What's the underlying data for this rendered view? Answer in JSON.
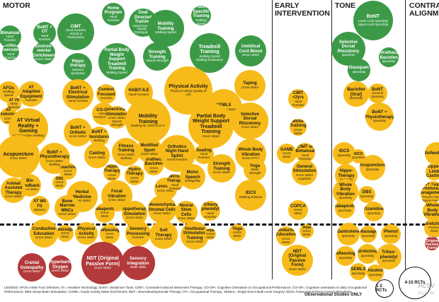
{
  "headers": [
    "MOTOR",
    "EARLY\nINTERVENTION",
    "TONE",
    "CONTRACTURE\nALIGNMENT"
  ],
  "legend": "LEGEND: AFOs=Ankle Foot Orthoses; AT= Assistive Technology; BoNT= Botulinum Toxin; CIMT= Constraint Induced Movement Therapy; CO-OP= Cognitive Orientation to Occupational Performance; CO-OP= Cognitive orientation to daily Occupational Performance; DBS=Deep Brain Stimulation; GAME= Goals Activity Motor Enrichment; NDT= Neurodevelopmental Therapy; OT= Occupational Therapy; SEMLS= Single Event Multi Level Surgery; tDCS=Transcranial Direct Current Stimulation",
  "size_legend": {
    "obs": "Observational Studies ONLY",
    "r1": "1-3 RCTs",
    "r2": "4-15 RCTs"
  },
  "watermark": {
    "line1": "Activ",
    "line2": "Go to Se"
  },
  "bubbles": [
    {
      "n": "Home Program",
      "s": "Hand Function",
      "c": "green"
    },
    {
      "n": "Goal Directed Training",
      "s": "Hand Function Activity & Participation",
      "c": "green"
    },
    {
      "n": "Task Specific Training",
      "s": "Walking Speed",
      "c": "green"
    },
    {
      "n": "Bimanual",
      "s": "Hand Function",
      "c": "green"
    },
    {
      "n": "BoNT + OT",
      "s": "Hand Function",
      "c": "green"
    },
    {
      "n": "CIMT",
      "s": "Hand Function Activity & Participation",
      "c": "green"
    },
    {
      "n": "Mobility Training",
      "s": "Walking Speed",
      "c": "green"
    },
    {
      "n": "Action Observation",
      "s": "Hand Function",
      "c": "green"
    },
    {
      "n": "Environ-mental Enrichment",
      "s": "Gross Motor",
      "c": "green"
    },
    {
      "n": "Hippo therapy",
      "s": "Balance Symmetry",
      "c": "green"
    },
    {
      "n": "Partial Body Weight Support Treadmill Training",
      "s": "Walking Speed",
      "c": "green"
    },
    {
      "n": "Strength Training",
      "s": "Muscle Strength",
      "c": "green"
    },
    {
      "n": "Treadmill Training",
      "s": "Walking Speed Walking Endurance",
      "c": "green"
    },
    {
      "n": "Umbilical Cord Blood",
      "s": "Gross Motor",
      "c": "green"
    },
    {
      "n": "AFOs",
      "s": "Walking Speed",
      "c": "yellow"
    },
    {
      "n": "AT Adaptive Equipment",
      "s": "Function",
      "c": "yellow"
    },
    {
      "n": "AT VR",
      "s": "Motor Function",
      "c": "yellow"
    },
    {
      "n": "BoNT + Electrical Stimulation",
      "s": "Hand Function",
      "c": "yellow"
    },
    {
      "n": "Context Focused",
      "s": "Function",
      "c": "yellow"
    },
    {
      "n": "HABIT-ILE",
      "s": "Hand Function",
      "c": "yellow"
    },
    {
      "n": "Physical Activity",
      "s": "Physical Activity Quality of Life",
      "c": "yellow"
    },
    {
      "n": "Taping",
      "s": "Gross Motor",
      "c": "yellow"
    },
    {
      "n": "AT Robotics",
      "s": "Gross Motor",
      "c": "yellow"
    },
    {
      "n": "CO-OP",
      "s": "Activity Performance",
      "c": "yellow"
    },
    {
      "n": "SEMLS",
      "s": "Gait Walking Speed",
      "c": "yellow"
    },
    {
      "n": "AT Virtual Reality + Gaming",
      "s": "Hand Function Walking",
      "c": "yellow"
    },
    {
      "n": "Electrical Stimulation",
      "s": "Gross Motor Muscle Strength",
      "c": "yellow"
    },
    {
      "n": "Mobility Training",
      "s": "Walking for GMFCS III-V",
      "c": "yellow"
    },
    {
      "n": "Partial Body Weight Support Treadmill Training",
      "s": "Gross Motor",
      "c": "yellow"
    },
    {
      "n": "Selective Dorsal Rhizotomy",
      "s": "Gross Motor",
      "c": "yellow"
    },
    {
      "n": "BoNT + Orthotic",
      "s": "Gross Motor",
      "c": "yellow"
    },
    {
      "n": "BoNT + Resistance",
      "s": "Walking",
      "c": "yellow"
    },
    {
      "n": "Acupuncture",
      "s": "Gross Motor",
      "c": "yellow"
    },
    {
      "n": "BoNT + Physiotherapy",
      "s": "Gross Motor Walking",
      "c": "yellow"
    },
    {
      "n": "Casting",
      "s": "Gross Motor",
      "c": "yellow"
    },
    {
      "n": "Fitness Training",
      "s": "Gross Motor Walking",
      "c": "yellow"
    },
    {
      "n": "Modified Sport",
      "s": "Gross Motor",
      "c": "yellow"
    },
    {
      "n": "Orthotics Night Hand Splint",
      "s": "Hand Function",
      "c": "yellow"
    },
    {
      "n": "Whole Body Vibration",
      "s": "Gross Motor",
      "c": "yellow"
    },
    {
      "n": "Seating",
      "s": "Hand Function",
      "c": "yellow"
    },
    {
      "n": "Coaching",
      "s": "Gross Motor",
      "c": "yellow"
    },
    {
      "n": "Hippo Therapy",
      "s": "Gross Motor",
      "c": "yellow"
    },
    {
      "n": "Hydro Therapy",
      "s": "Gross Motor",
      "c": "yellow"
    },
    {
      "n": "Intrathecal Baclofen",
      "s": "Gross Motor",
      "c": "yellow"
    },
    {
      "n": "Strength Training",
      "s": "Gross Motor",
      "c": "yellow"
    },
    {
      "n": "Yoga",
      "s": "Motor Strength",
      "c": "yellow"
    },
    {
      "n": "Bio Feedback",
      "s": "Gross Motor",
      "c": "yellow"
    },
    {
      "n": "DBS",
      "s": "Gross Motor",
      "c": "yellow"
    },
    {
      "n": "Levodopa",
      "s": "Gross Motor",
      "c": "yellow"
    },
    {
      "n": "Mirror Therapy",
      "s": "Hand Function",
      "c": "yellow"
    },
    {
      "n": "Motor Speech",
      "s": "Intelligibility",
      "c": "yellow"
    },
    {
      "n": "Animal Assisted Therapy",
      "s": "Gross Motor",
      "c": "yellow"
    },
    {
      "n": "Herbal Medicine",
      "s": "Gross Motor",
      "c": "yellow"
    },
    {
      "n": "Focal Vibration",
      "s": "Gross Motor",
      "c": "yellow"
    },
    {
      "n": "tDCS",
      "s": "Walking Balance",
      "c": "yellow"
    },
    {
      "n": "AT Wii Fit",
      "s": "Balance",
      "c": "yellow"
    },
    {
      "n": "Bone Marrow MNCs",
      "s": "Gross Motor",
      "c": "yellow"
    },
    {
      "n": "Gabapentin",
      "s": "Gross Motor",
      "c": "yellow"
    },
    {
      "n": "Hippotherapy Simulation",
      "s": "Gross Motor",
      "c": "yellow"
    },
    {
      "n": "Mesenchymal Stromal Cells",
      "s": "Gross Motor",
      "c": "yellow"
    },
    {
      "n": "Neural Stem Cells",
      "s": "Gross Motor",
      "c": "yellow"
    },
    {
      "n": "Trihexy phenidyl",
      "s": "Hand Function",
      "c": "yellow"
    },
    {
      "n": "Conductive Education",
      "s": "Gross Motor",
      "c": "yellow"
    },
    {
      "n": "Massage",
      "s": "Gross Motor",
      "c": "yellow"
    },
    {
      "n": "Physical Activity",
      "s": "Gross Motor",
      "c": "yellow"
    },
    {
      "n": "Reflexology",
      "s": "Gross Motor",
      "c": "yellow"
    },
    {
      "n": "Sensory Processing",
      "s": "Function",
      "c": "yellow"
    },
    {
      "n": "Suit Therapy",
      "s": "Gross Motor",
      "c": "yellow"
    },
    {
      "n": "Vestibular Stimulation Training",
      "s": "Gross Motor",
      "c": "yellow"
    },
    {
      "n": "Vojta",
      "s": "Gross Motor",
      "c": "yellow"
    },
    {
      "n": "Yoga",
      "s": "Gross Motor",
      "c": "yellow"
    },
    {
      "n": "Cranial Osteopathy",
      "s": "Gross Motor",
      "c": "red"
    },
    {
      "n": "Hyperbaric Oxygen",
      "s": "Gross Motor",
      "c": "red"
    },
    {
      "n": "NDT [Original Passive Form]",
      "s": "Gross Motor",
      "c": "red"
    },
    {
      "n": "Sensory Integration",
      "s": "Motor Skills",
      "c": "red"
    },
    {
      "n": "CIMT <2yrs",
      "s": "Hand Function",
      "c": "yellow"
    },
    {
      "n": "Motor Training",
      "s": "Gross Motor",
      "c": "yellow"
    },
    {
      "n": "GAME",
      "s": "Gross Motor",
      "c": "yellow"
    },
    {
      "n": "CIMT or Bimanual",
      "s": "Hand Function",
      "c": "yellow"
    },
    {
      "n": "General Stimulation",
      "s": "Gross Motor Cognition",
      "c": "yellow"
    },
    {
      "n": "COPCA",
      "s": "Gross Motor",
      "c": "yellow"
    },
    {
      "n": "Conductive Education",
      "s": "Gross Motor",
      "c": "yellow"
    },
    {
      "n": "Vojta",
      "s": "Gross Motor",
      "c": "yellow"
    },
    {
      "n": "NDT [Original Passive Form]",
      "s": "Gross Motor",
      "c": "yellow"
    },
    {
      "n": "BoNT",
      "s": "Lower Limb Spasticity Upper Limb Spasticity",
      "c": "green"
    },
    {
      "n": "Selective Dorsal Rhizotomy",
      "s": "Spasticity",
      "c": "green"
    },
    {
      "n": "Intrathecal Baclofen",
      "s": "Spasticity",
      "c": "green"
    },
    {
      "n": "Diazepam",
      "s": "Spasticity",
      "c": "green"
    },
    {
      "n": "Baclofen [Oral]",
      "s": "Spasticity",
      "c": "yellow"
    },
    {
      "n": "BoNT",
      "s": "Cervical Dystonia",
      "c": "yellow"
    },
    {
      "n": "BoNT + Physiotherapy",
      "s": "Spasticity",
      "c": "yellow"
    },
    {
      "n": "tDCS",
      "s": "Spasticity",
      "c": "yellow"
    },
    {
      "n": "tDCS",
      "s": "Spasticity",
      "c": "yellow"
    },
    {
      "n": "Hippo-Therapy",
      "s": "Spasticity",
      "c": "yellow"
    },
    {
      "n": "Acupuncture",
      "s": "Spasticity",
      "c": "yellow"
    },
    {
      "n": "Whole Body Vibration",
      "s": "Spasticity",
      "c": "yellow"
    },
    {
      "n": "DBS",
      "s": "Spasticity",
      "c": "yellow"
    },
    {
      "n": "Gabapentin",
      "s": "Spasticity",
      "c": "yellow"
    },
    {
      "n": "Tizanidine",
      "s": "Spasticity",
      "c": "yellow"
    },
    {
      "n": "Dantrolene",
      "s": "Spasticity",
      "c": "yellow"
    },
    {
      "n": "Massage",
      "s": "Spasticity",
      "c": "yellow"
    },
    {
      "n": "Phenol",
      "s": "Spasticity",
      "c": "yellow"
    },
    {
      "n": "Reflexology",
      "s": "Spasticity",
      "c": "yellow"
    },
    {
      "n": "Stretching",
      "s": "Spasticity",
      "c": "yellow"
    },
    {
      "n": "Trihex-phenidyl",
      "s": "Spasticity",
      "c": "yellow"
    },
    {
      "n": "SEMLS",
      "s": "Spasticity",
      "c": "yellow"
    },
    {
      "n": "Alcohol",
      "s": "Spasticity",
      "c": "yellow"
    },
    {
      "n": "Biofeedback",
      "s": "",
      "c": "yellow"
    },
    {
      "n": "Upper Limb Casting",
      "s": "",
      "c": "yellow"
    },
    {
      "n": "AT Ankle Positioning",
      "s": "Ankle Range",
      "c": "yellow"
    },
    {
      "n": "Postural Management",
      "s": "Prevent Hip Displacement",
      "c": "yellow"
    },
    {
      "n": "Whole Body Vibration",
      "s": "",
      "c": "yellow"
    },
    {
      "n": "Stretching",
      "s": "Passive ROM",
      "c": "yellow"
    },
    {
      "n": "NDT [Original Passive Form]",
      "s": "",
      "c": "red"
    }
  ]
}
